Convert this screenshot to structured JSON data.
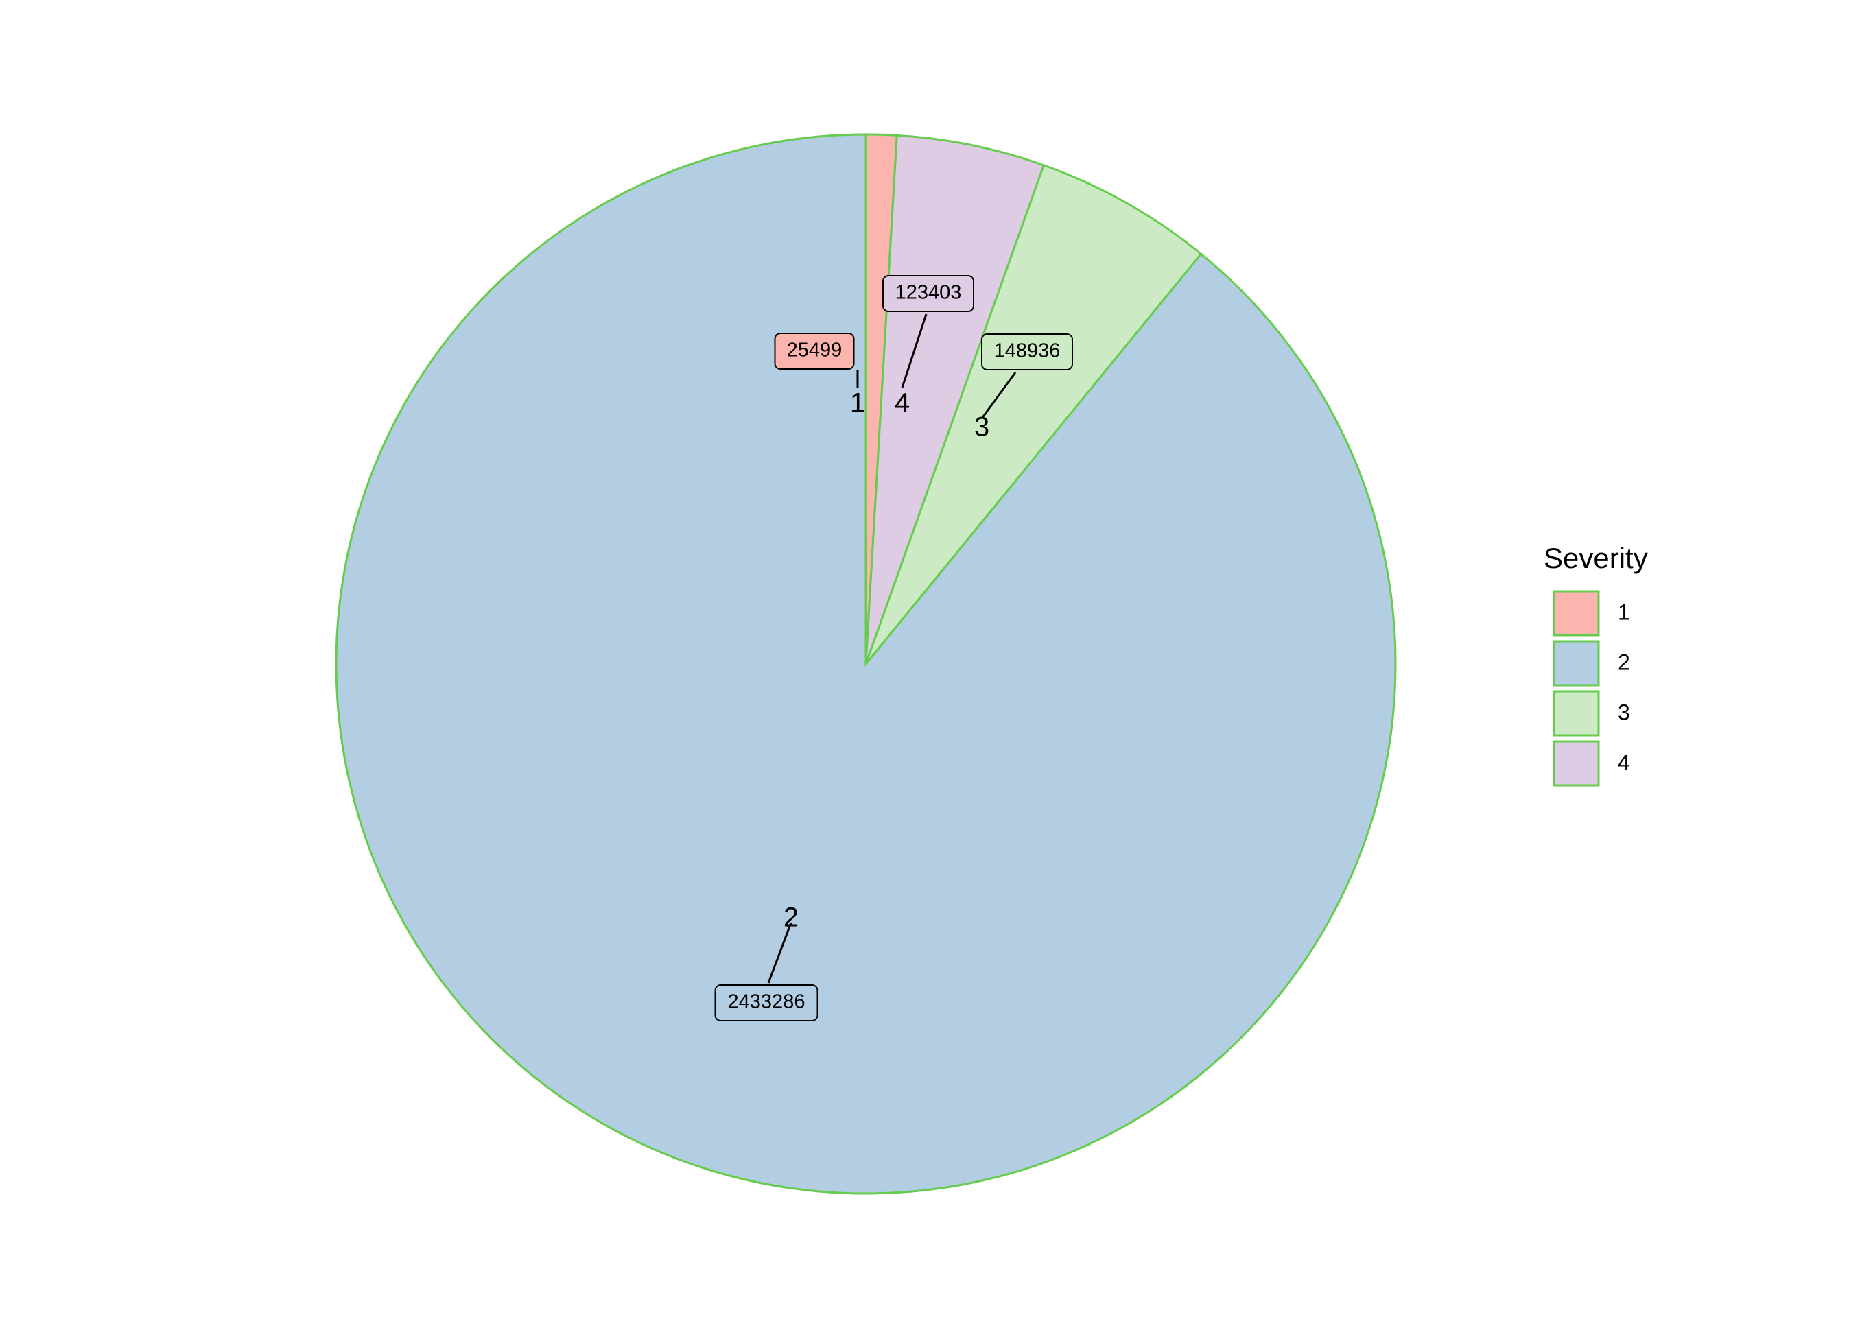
{
  "chart_data": {
    "type": "pie",
    "title": "",
    "legend_title": "Severity",
    "legend_position": "right",
    "start_angle": "top, clockwise",
    "slice_border_color": "#66cc4d",
    "slices": [
      {
        "label": "1",
        "value": 25499,
        "value_label": "25499",
        "color": "#fbb4ae"
      },
      {
        "label": "4",
        "value": 123403,
        "value_label": "123403",
        "color": "#decbe4"
      },
      {
        "label": "3",
        "value": 148936,
        "value_label": "148936",
        "color": "#ccebc5"
      },
      {
        "label": "2",
        "value": 2433286,
        "value_label": "2433286",
        "color": "#b3cde3"
      }
    ],
    "legend": [
      {
        "label": "1",
        "color": "#fbb4ae"
      },
      {
        "label": "2",
        "color": "#b3cde3"
      },
      {
        "label": "3",
        "color": "#ccebc5"
      },
      {
        "label": "4",
        "color": "#decbe4"
      }
    ]
  }
}
